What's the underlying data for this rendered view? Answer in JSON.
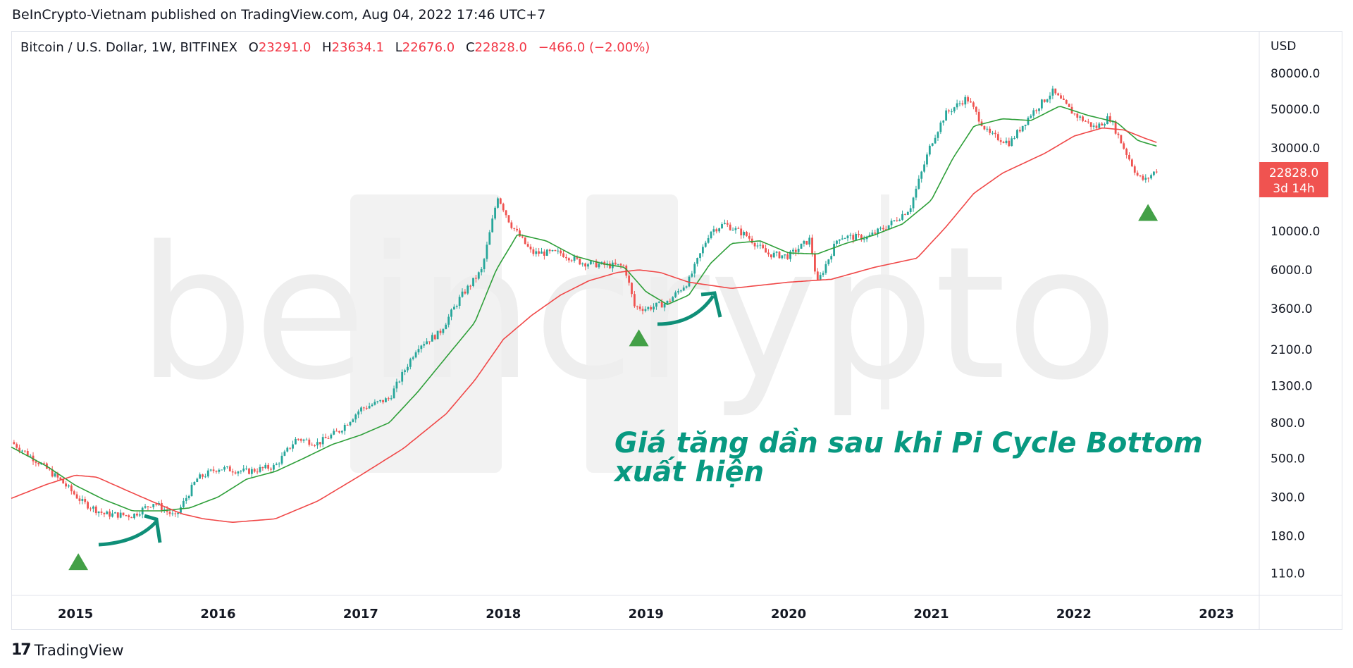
{
  "publisher_line": "BeInCrypto-Vietnam published on TradingView.com, Aug 04, 2022 17:46 UTC+7",
  "legend": {
    "symbol": "Bitcoin / U.S. Dollar, 1W, BITFINEX",
    "o_label": "O",
    "o_value": "23291.0",
    "h_label": "H",
    "h_value": "23634.1",
    "l_label": "L",
    "l_value": "22676.0",
    "c_label": "C",
    "c_value": "22828.0",
    "change": "−466.0 (−2.00%)"
  },
  "currency_label": "USD",
  "price_badge": {
    "price": "22828.0",
    "countdown": "3d 14h"
  },
  "watermark": "beincrypto",
  "annotation_lines": [
    "Giá tăng dần sau khi Pi Cycle Bottom",
    "xuất hiện"
  ],
  "footer_brand": "TradingView",
  "colors": {
    "fast_ma": "#2e9f39",
    "slow_ma": "#f04848",
    "up": "#26a69a",
    "down": "#ef5350",
    "signal": "#43a047",
    "arrow": "#0f8f78",
    "badge": "#f05350"
  },
  "chart_data": {
    "type": "line",
    "scale": "log",
    "title": "Bitcoin / U.S. Dollar, 1W, BITFINEX",
    "ylabel": "USD",
    "xlim": [
      2014.55,
      2023.3
    ],
    "ylim": [
      82,
      140000
    ],
    "yticks": [
      "80000.0",
      "50000.0",
      "30000.0",
      "10000.0",
      "6000.0",
      "3600.0",
      "2100.0",
      "1300.0",
      "800.0",
      "500.0",
      "300.0",
      "180.0",
      "110.0"
    ],
    "xticks": [
      "2015",
      "2016",
      "2017",
      "2018",
      "2019",
      "2020",
      "2021",
      "2022",
      "2023"
    ],
    "grid": false,
    "price": {
      "x": [
        2014.55,
        2014.75,
        2014.9,
        2015.05,
        2015.2,
        2015.4,
        2015.55,
        2015.7,
        2015.85,
        2016.0,
        2016.2,
        2016.4,
        2016.55,
        2016.7,
        2016.85,
        2017.0,
        2017.2,
        2017.4,
        2017.55,
        2017.7,
        2017.85,
        2017.96,
        2018.05,
        2018.2,
        2018.4,
        2018.55,
        2018.7,
        2018.85,
        2018.92,
        2019.0,
        2019.15,
        2019.3,
        2019.45,
        2019.55,
        2019.7,
        2019.85,
        2020.0,
        2020.15,
        2020.2,
        2020.35,
        2020.55,
        2020.7,
        2020.85,
        2021.0,
        2021.1,
        2021.25,
        2021.4,
        2021.55,
        2021.7,
        2021.85,
        2022.0,
        2022.15,
        2022.25,
        2022.35,
        2022.45,
        2022.5,
        2022.59
      ],
      "y": [
        620,
        470,
        370,
        280,
        240,
        235,
        280,
        230,
        380,
        440,
        420,
        450,
        650,
        610,
        720,
        960,
        1100,
        2200,
        2600,
        4200,
        6000,
        16000,
        11000,
        7500,
        7500,
        6600,
        6400,
        6300,
        3700,
        3600,
        3900,
        5200,
        10000,
        11000,
        9500,
        7400,
        7200,
        9000,
        5000,
        9300,
        9200,
        10800,
        13500,
        32000,
        47000,
        58000,
        36000,
        32000,
        47000,
        63000,
        47000,
        39000,
        45000,
        30000,
        20500,
        19500,
        22828
      ]
    },
    "series": [
      {
        "name": "",
        "color": "#2e9f39",
        "x": [
          2014.55,
          2014.8,
          2015.0,
          2015.2,
          2015.4,
          2015.6,
          2015.8,
          2016.0,
          2016.2,
          2016.4,
          2016.6,
          2016.8,
          2017.0,
          2017.2,
          2017.4,
          2017.6,
          2017.8,
          2017.95,
          2018.1,
          2018.3,
          2018.5,
          2018.7,
          2018.85,
          2019.0,
          2019.15,
          2019.3,
          2019.45,
          2019.6,
          2019.8,
          2020.0,
          2020.2,
          2020.4,
          2020.6,
          2020.8,
          2021.0,
          2021.15,
          2021.3,
          2021.5,
          2021.7,
          2021.9,
          2022.1,
          2022.3,
          2022.45,
          2022.59
        ],
        "y": [
          580,
          450,
          350,
          290,
          250,
          250,
          260,
          300,
          380,
          420,
          500,
          600,
          680,
          800,
          1200,
          1900,
          3000,
          6000,
          9600,
          8800,
          7200,
          6500,
          6200,
          4500,
          3800,
          4300,
          6500,
          8500,
          8800,
          7500,
          7400,
          8500,
          9500,
          11000,
          15000,
          26000,
          40000,
          44000,
          43000,
          52000,
          46000,
          42000,
          33000,
          30500
        ]
      },
      {
        "name": "",
        "color": "#f04848",
        "x": [
          2014.55,
          2014.8,
          2015.0,
          2015.15,
          2015.35,
          2015.55,
          2015.75,
          2015.9,
          2016.1,
          2016.4,
          2016.7,
          2017.0,
          2017.3,
          2017.6,
          2017.8,
          2018.0,
          2018.2,
          2018.4,
          2018.6,
          2018.8,
          2018.95,
          2019.1,
          2019.3,
          2019.6,
          2020.0,
          2020.3,
          2020.6,
          2020.9,
          2021.1,
          2021.3,
          2021.5,
          2021.8,
          2022.0,
          2022.2,
          2022.35,
          2022.5,
          2022.59
        ],
        "y": [
          295,
          355,
          400,
          390,
          330,
          280,
          240,
          225,
          215,
          225,
          285,
          400,
          570,
          900,
          1400,
          2400,
          3300,
          4300,
          5200,
          5800,
          6000,
          5800,
          5100,
          4700,
          5100,
          5300,
          6200,
          7000,
          10500,
          16500,
          21500,
          28000,
          35000,
          39000,
          38000,
          34000,
          32000
        ]
      }
    ],
    "signals": [
      {
        "label": "Pi Cycle Bottom",
        "x": 2015.02,
        "y": 128
      },
      {
        "label": "Pi Cycle Bottom",
        "x": 2018.95,
        "y": 2450
      },
      {
        "label": "Pi Cycle Bottom",
        "x": 2022.52,
        "y": 12800
      }
    ]
  }
}
